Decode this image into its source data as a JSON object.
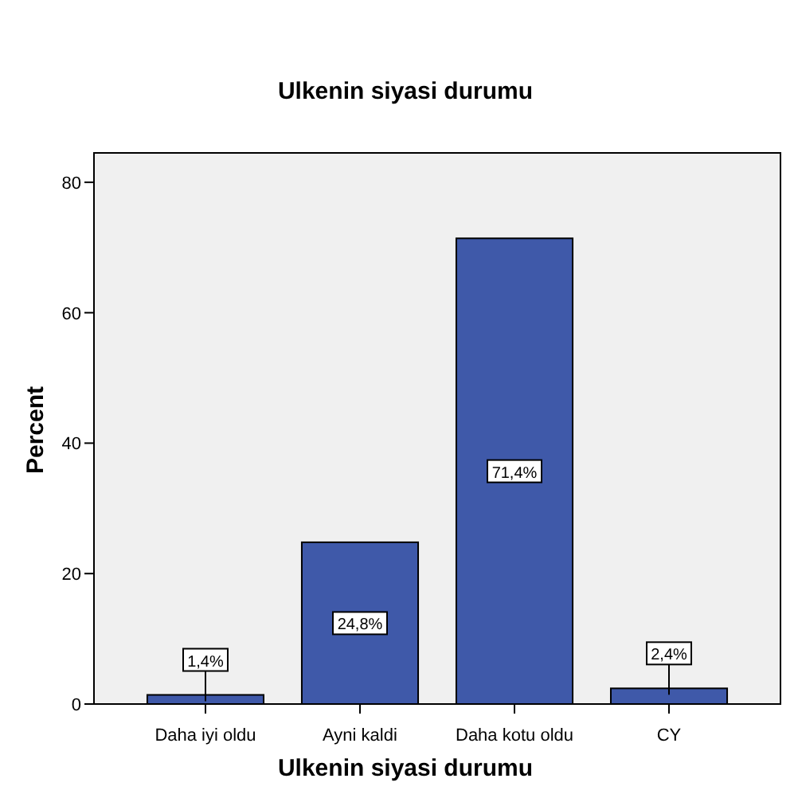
{
  "chart_data": {
    "type": "bar",
    "title": "Ulkenin siyasi durumu",
    "xlabel": "Ulkenin siyasi durumu",
    "ylabel": "Percent",
    "categories": [
      "Daha iyi oldu",
      "Ayni kaldi",
      "Daha kotu oldu",
      "CY"
    ],
    "values": [
      1.4,
      24.8,
      71.4,
      2.4
    ],
    "value_labels": [
      "1,4%",
      "24,8%",
      "71,4%",
      "2,4%"
    ],
    "color": "#3f59a9",
    "ylim": [
      0,
      84.5
    ],
    "yticks": [
      0,
      20,
      40,
      60,
      80
    ]
  }
}
